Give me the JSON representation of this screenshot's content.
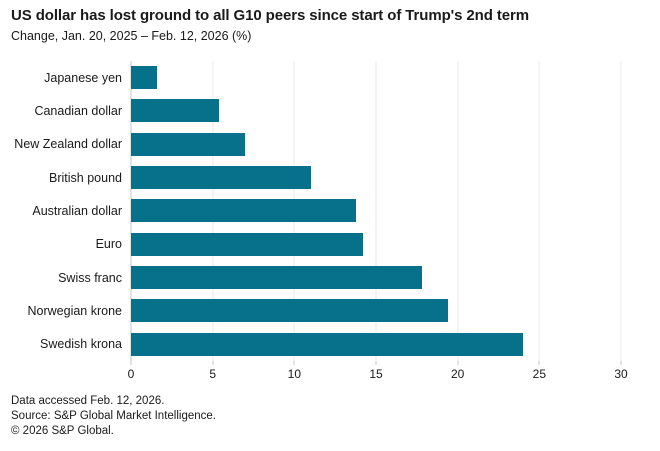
{
  "header": {
    "title": "US dollar has lost ground to all G10 peers since start of Trump's 2nd term",
    "subtitle": "Change, Jan. 20, 2025 – Feb. 12, 2026 (%)"
  },
  "chart_data": {
    "type": "bar",
    "orientation": "horizontal",
    "title": "US dollar has lost ground to all G10 peers since start of Trump's 2nd term",
    "subtitle": "Change, Jan. 20, 2025 – Feb. 12, 2026 (%)",
    "categories": [
      "Japanese yen",
      "Canadian dollar",
      "New Zealand dollar",
      "British pound",
      "Australian dollar",
      "Euro",
      "Swiss franc",
      "Norwegian krone",
      "Swedish krona"
    ],
    "values": [
      1.6,
      5.4,
      7.0,
      11.0,
      13.8,
      14.2,
      17.8,
      19.4,
      24.0
    ],
    "xlabel": "",
    "ylabel": "",
    "xlim": [
      0,
      30
    ],
    "xticks": [
      0,
      5,
      10,
      15,
      20,
      25,
      30
    ],
    "grid": "vertical",
    "legend": "none",
    "bar_color": "#07708A",
    "gridline_color": "#e9e9e9",
    "axis_line_color": "#c5c5c5"
  },
  "footer": {
    "lines": [
      "Data accessed Feb. 12, 2026.",
      "Source: S&P Global Market Intelligence.",
      "© 2026 S&P Global."
    ]
  }
}
